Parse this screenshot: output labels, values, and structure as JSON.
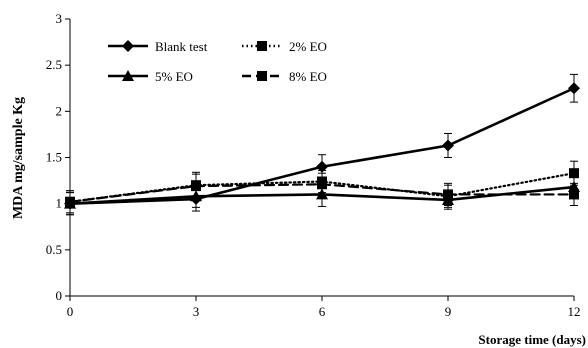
{
  "chart_data": {
    "type": "line",
    "xlabel": "Storage time (days)",
    "ylabel": "MDA mg/sample Kg",
    "x": [
      0,
      3,
      6,
      9,
      12
    ],
    "xlim": [
      0,
      12
    ],
    "ylim": [
      0,
      3
    ],
    "x_ticks": [
      "0",
      "3",
      "6",
      "9",
      "12"
    ],
    "y_ticks": [
      "0",
      "0.5",
      "1",
      "1.5",
      "2",
      "2.5",
      "3"
    ],
    "legend_position": "top-left",
    "grid": false,
    "series": [
      {
        "name": "Blank test",
        "marker": "diamond",
        "line": "solid",
        "values": [
          1.0,
          1.05,
          1.4,
          1.63,
          2.25
        ],
        "errors": [
          0.12,
          0.13,
          0.13,
          0.13,
          0.15
        ]
      },
      {
        "name": "2% EO",
        "marker": "square",
        "line": "dotted",
        "values": [
          1.02,
          1.2,
          1.24,
          1.08,
          1.33
        ],
        "errors": [
          0.12,
          0.14,
          0.12,
          0.12,
          0.13
        ]
      },
      {
        "name": "5% EO",
        "marker": "triangle",
        "line": "solid",
        "values": [
          1.0,
          1.08,
          1.1,
          1.04,
          1.18
        ],
        "errors": [
          0.12,
          0.12,
          0.13,
          0.1,
          0.12
        ]
      },
      {
        "name": "8% EO",
        "marker": "square",
        "line": "dashed",
        "values": [
          1.02,
          1.19,
          1.21,
          1.1,
          1.1
        ],
        "errors": [
          0.12,
          0.13,
          0.12,
          0.12,
          0.12
        ]
      }
    ]
  }
}
